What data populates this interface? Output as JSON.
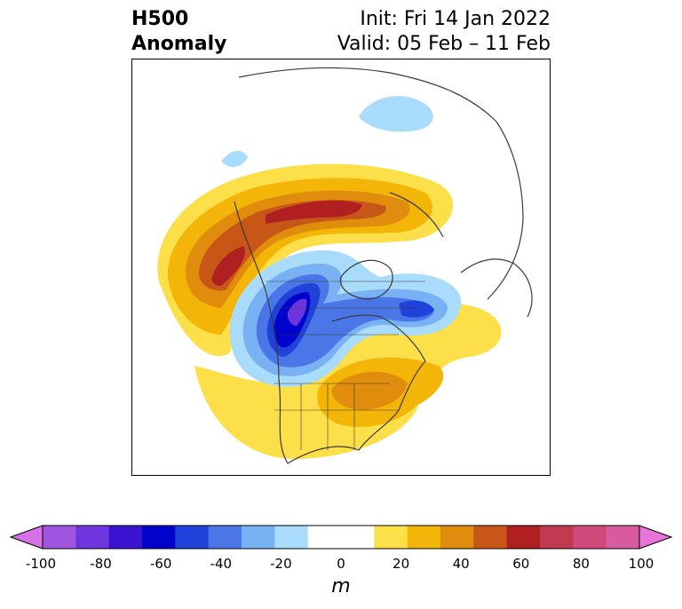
{
  "title": {
    "left_line1": "H500",
    "left_line2": "Anomaly",
    "right_line1": "Init: Fri 14 Jan 2022",
    "right_line2": "Valid: 05 Feb – 11 Feb"
  },
  "colorbar": {
    "unit": "m",
    "range": [
      -100,
      100
    ],
    "tick_labels": [
      "-100",
      "-80",
      "-60",
      "-40",
      "-20",
      "0",
      "20",
      "40",
      "60",
      "80",
      "100"
    ],
    "colors": [
      "#d671e8",
      "#a055df",
      "#6f35dc",
      "#3a14d0",
      "#0003cc",
      "#2142d9",
      "#4b76e8",
      "#78b2f4",
      "#a9dbfb",
      "#ffffff",
      "#ffffff",
      "#fde049",
      "#f3b508",
      "#e08c0d",
      "#c85617",
      "#b02021",
      "#c13a52",
      "#cf4a7a",
      "#d95b9f",
      "#e775d7"
    ]
  },
  "legend": {
    "anomaly_colors": {
      "neg_light": "#a9dbfb",
      "neg_mid": "#78b2f4",
      "neg_strong": "#4b76e8",
      "neg_deep": "#2142d9",
      "neg_core": "#0003cc",
      "neg_max": "#6f35dc",
      "pos_light": "#fde049",
      "pos_mid": "#f3b508",
      "pos_orange": "#e08c0d",
      "pos_red_orange": "#c85617",
      "pos_red": "#b02021",
      "coast": "#3a3a3a"
    }
  }
}
